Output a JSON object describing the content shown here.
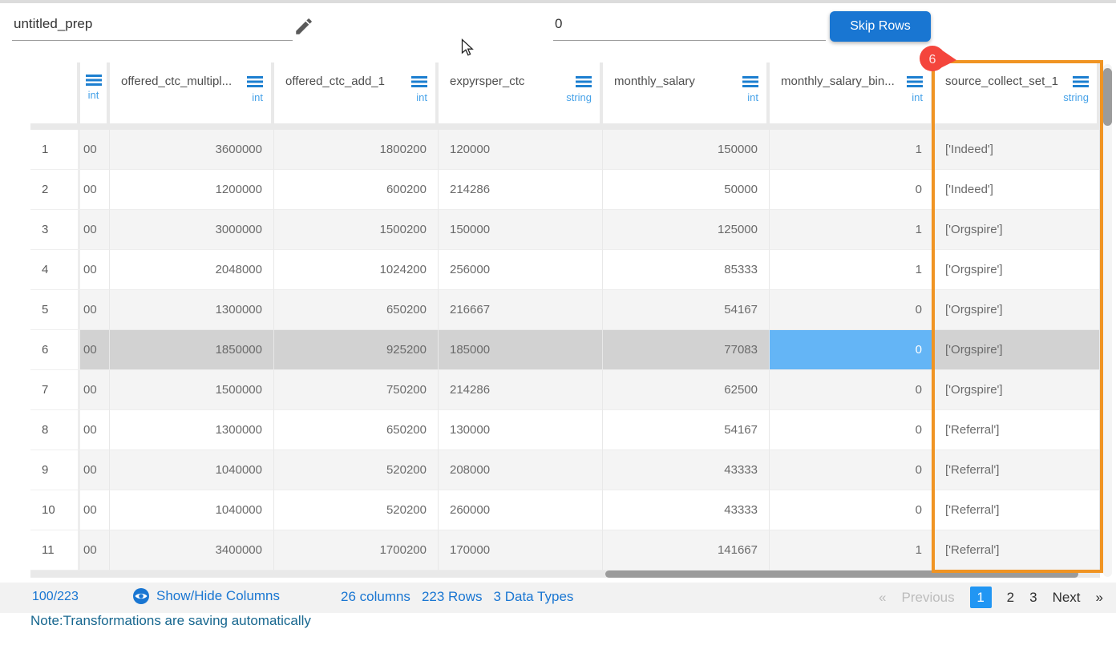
{
  "topbar": {
    "dataset_name": "untitled_prep",
    "skip_rows_value": "0",
    "skip_rows_button": "Skip Rows"
  },
  "table": {
    "columns": [
      {
        "name": "",
        "type": "int"
      },
      {
        "name": "offered_ctc_multipl...",
        "type": "int"
      },
      {
        "name": "offered_ctc_add_1",
        "type": "int"
      },
      {
        "name": "expyrsper_ctc",
        "type": "string"
      },
      {
        "name": "monthly_salary",
        "type": "int"
      },
      {
        "name": "monthly_salary_bin...",
        "type": "int"
      },
      {
        "name": "source_collect_set_1",
        "type": "string"
      }
    ],
    "rows": [
      {
        "num": "1",
        "cells": [
          "00",
          "3600000",
          "1800200",
          "120000",
          "150000",
          "1",
          "['Indeed']"
        ]
      },
      {
        "num": "2",
        "cells": [
          "00",
          "1200000",
          "600200",
          "214286",
          "50000",
          "0",
          "['Indeed']"
        ]
      },
      {
        "num": "3",
        "cells": [
          "00",
          "3000000",
          "1500200",
          "150000",
          "125000",
          "1",
          "['Orgspire']"
        ]
      },
      {
        "num": "4",
        "cells": [
          "00",
          "2048000",
          "1024200",
          "256000",
          "85333",
          "1",
          "['Orgspire']"
        ]
      },
      {
        "num": "5",
        "cells": [
          "00",
          "1300000",
          "650200",
          "216667",
          "54167",
          "0",
          "['Orgspire']"
        ]
      },
      {
        "num": "6",
        "cells": [
          "00",
          "1850000",
          "925200",
          "185000",
          "77083",
          "0",
          "['Orgspire']"
        ]
      },
      {
        "num": "7",
        "cells": [
          "00",
          "1500000",
          "750200",
          "214286",
          "62500",
          "0",
          "['Orgspire']"
        ]
      },
      {
        "num": "8",
        "cells": [
          "00",
          "1300000",
          "650200",
          "130000",
          "54167",
          "0",
          "['Referral']"
        ]
      },
      {
        "num": "9",
        "cells": [
          "00",
          "1040000",
          "520200",
          "208000",
          "43333",
          "0",
          "['Referral']"
        ]
      },
      {
        "num": "10",
        "cells": [
          "00",
          "1040000",
          "520200",
          "260000",
          "43333",
          "0",
          "['Referral']"
        ]
      },
      {
        "num": "11",
        "cells": [
          "00",
          "3400000",
          "1700200",
          "170000",
          "141667",
          "1",
          "['Referral']"
        ]
      }
    ],
    "selected_row": "6",
    "selected_cell": {
      "row": "6",
      "column": "monthly_salary_bin...",
      "value": "0"
    },
    "highlighted_column": {
      "name": "source_collect_set_1",
      "badge": "6"
    }
  },
  "footer": {
    "progress": "100/223",
    "show_hide_label": "Show/Hide Columns",
    "stats": [
      "26 columns",
      "223 Rows",
      "3 Data Types"
    ],
    "pagination": {
      "prev_arrow": "«",
      "prev": "Previous",
      "pages": [
        "1",
        "2",
        "3"
      ],
      "active_page": "1",
      "next": "Next",
      "next_arrow": "»"
    }
  },
  "note": "Note:Transformations are saving automatically",
  "colors": {
    "accent_blue": "#1976d2",
    "active_page_blue": "#2196f3",
    "selected_cell_blue": "#64b5f6",
    "selected_row_gray": "#d2d2d2",
    "highlight_orange": "#f09423",
    "badge_red": "#f4453c",
    "note_teal": "#17678f",
    "type_label_blue": "#45a1e8"
  }
}
